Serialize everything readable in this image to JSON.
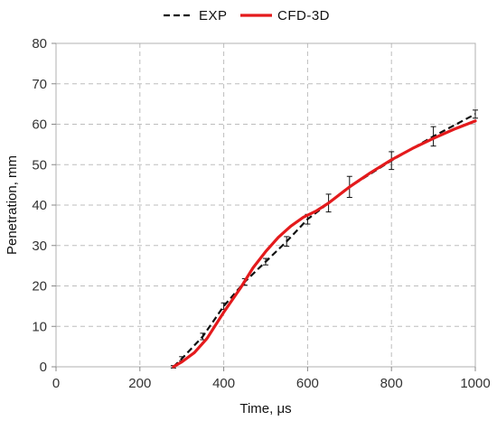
{
  "chart_data": {
    "type": "line",
    "title": "",
    "xlabel": "Time, μs",
    "ylabel": "Penetration, mm",
    "xlim": [
      0,
      1000
    ],
    "ylim": [
      0,
      80
    ],
    "xticks": [
      0,
      200,
      400,
      600,
      800,
      1000
    ],
    "yticks": [
      0,
      10,
      20,
      30,
      40,
      50,
      60,
      70,
      80
    ],
    "grid": true,
    "legend_position": "top-center",
    "series": [
      {
        "name": "EXP",
        "style": "dashed",
        "color": "#111111",
        "x": [
          280,
          300,
          350,
          400,
          450,
          500,
          550,
          600,
          650,
          700,
          800,
          900,
          1000
        ],
        "y": [
          0,
          2,
          7.5,
          15,
          21,
          26,
          31,
          36.5,
          40.5,
          44.5,
          51,
          57,
          62.5
        ],
        "error": [
          0.3,
          0.5,
          0.8,
          0.8,
          0.8,
          0.8,
          1.2,
          1.2,
          2.2,
          2.6,
          2.2,
          2.4,
          1.0
        ]
      },
      {
        "name": "CFD-3D",
        "style": "solid",
        "color": "#e41a1c",
        "x": [
          280,
          300,
          330,
          360,
          400,
          440,
          470,
          500,
          530,
          560,
          590,
          620,
          650,
          700,
          750,
          800,
          850,
          900,
          950,
          1000
        ],
        "y": [
          0,
          1.2,
          3.5,
          7,
          13.5,
          19.5,
          24.5,
          28.5,
          32,
          34.8,
          37,
          38.5,
          40.5,
          44.5,
          48,
          51.2,
          54,
          56.5,
          58.8,
          60.8
        ]
      }
    ]
  }
}
